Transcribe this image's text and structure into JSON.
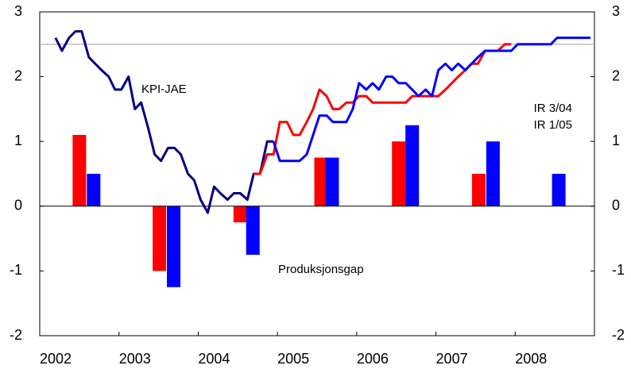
{
  "chart_data": {
    "type": "combo",
    "xlim": [
      2002,
      2009
    ],
    "xticks": [
      2002,
      2003,
      2004,
      2005,
      2006,
      2007,
      2008
    ],
    "ylim": [
      -2,
      3
    ],
    "yticks": [
      -2,
      -1,
      0,
      1,
      2,
      3
    ],
    "y2lim": [
      -2,
      3
    ],
    "y2ticks": [
      -2,
      -1,
      0,
      1,
      2,
      3
    ],
    "reference_line": 2.5,
    "annotations": [
      "Produksjonsgap"
    ],
    "series": [
      {
        "name": "KPI-JAE",
        "type": "line",
        "color": "#000080",
        "x": [
          2002.2,
          2002.28,
          2002.37,
          2002.45,
          2002.53,
          2002.62,
          2002.7,
          2002.78,
          2002.87,
          2002.95,
          2003.03,
          2003.12,
          2003.2,
          2003.28,
          2003.37,
          2003.45,
          2003.53,
          2003.62,
          2003.7,
          2003.78,
          2003.87,
          2003.95,
          2004.03,
          2004.12,
          2004.2,
          2004.28,
          2004.37,
          2004.45,
          2004.53,
          2004.62,
          2004.7,
          2004.78,
          2004.87,
          2004.95
        ],
        "values": [
          2.6,
          2.4,
          2.6,
          2.7,
          2.7,
          2.3,
          2.2,
          2.1,
          2.0,
          1.8,
          1.8,
          2.0,
          1.5,
          1.6,
          1.2,
          0.8,
          0.7,
          0.9,
          0.9,
          0.8,
          0.5,
          0.4,
          0.1,
          -0.1,
          0.3,
          0.2,
          0.1,
          0.2,
          0.2,
          0.1,
          0.5,
          0.5,
          1.0,
          1.0
        ]
      },
      {
        "name": "IR 3/04",
        "type": "line",
        "color": "#ff0000",
        "x": [
          2004.7,
          2004.78,
          2004.87,
          2004.95,
          2005.03,
          2005.12,
          2005.2,
          2005.28,
          2005.37,
          2005.45,
          2005.53,
          2005.62,
          2005.7,
          2005.78,
          2005.87,
          2005.95,
          2006.03,
          2006.12,
          2006.2,
          2006.28,
          2006.37,
          2006.45,
          2006.53,
          2006.62,
          2006.7,
          2006.78,
          2006.87,
          2006.95,
          2007.03,
          2007.12,
          2007.2,
          2007.28,
          2007.37,
          2007.45,
          2007.53,
          2007.62,
          2007.7,
          2007.78,
          2007.87,
          2007.95
        ],
        "values": [
          0.5,
          0.5,
          0.8,
          0.8,
          1.3,
          1.3,
          1.1,
          1.1,
          1.3,
          1.5,
          1.8,
          1.7,
          1.5,
          1.5,
          1.6,
          1.6,
          1.7,
          1.7,
          1.6,
          1.6,
          1.6,
          1.6,
          1.6,
          1.6,
          1.7,
          1.7,
          1.7,
          1.7,
          1.7,
          1.8,
          1.9,
          2.0,
          2.1,
          2.2,
          2.2,
          2.4,
          2.4,
          2.4,
          2.5,
          2.5
        ]
      },
      {
        "name": "IR 1/05",
        "type": "line",
        "color": "#0000ff",
        "x": [
          2004.95,
          2005.03,
          2005.12,
          2005.2,
          2005.28,
          2005.37,
          2005.45,
          2005.53,
          2005.62,
          2005.7,
          2005.78,
          2005.87,
          2005.95,
          2006.03,
          2006.12,
          2006.2,
          2006.28,
          2006.37,
          2006.45,
          2006.53,
          2006.62,
          2006.7,
          2006.78,
          2006.87,
          2006.95,
          2007.03,
          2007.12,
          2007.2,
          2007.28,
          2007.37,
          2007.45,
          2007.53,
          2007.62,
          2007.7,
          2007.78,
          2007.87,
          2007.95,
          2008.03,
          2008.12,
          2008.2,
          2008.28,
          2008.37,
          2008.45,
          2008.53,
          2008.62,
          2008.7,
          2008.78,
          2008.87,
          2008.95
        ],
        "values": [
          1.0,
          0.7,
          0.7,
          0.7,
          0.7,
          0.8,
          1.1,
          1.4,
          1.4,
          1.3,
          1.3,
          1.3,
          1.5,
          1.9,
          1.8,
          1.9,
          1.8,
          2.0,
          2.0,
          1.9,
          1.9,
          1.8,
          1.7,
          1.8,
          1.7,
          2.1,
          2.2,
          2.1,
          2.2,
          2.1,
          2.2,
          2.3,
          2.4,
          2.4,
          2.4,
          2.4,
          2.4,
          2.5,
          2.5,
          2.5,
          2.5,
          2.5,
          2.5,
          2.6,
          2.6,
          2.6,
          2.6,
          2.6,
          2.6
        ]
      },
      {
        "type": "bar",
        "color": "#ff0000",
        "x": [
          2002.5,
          2003.51,
          2004.53,
          2005.55,
          2006.53,
          2007.54
        ],
        "values": [
          1.1,
          -1.0,
          -0.25,
          0.75,
          1.0,
          0.5
        ]
      },
      {
        "type": "bar",
        "color": "#0000ff",
        "x": [
          2002.68,
          2003.69,
          2004.69,
          2005.69,
          2006.7,
          2007.72,
          2008.55
        ],
        "values": [
          0.5,
          -1.25,
          -0.75,
          0.75,
          1.25,
          1.0,
          0.5
        ]
      }
    ]
  }
}
